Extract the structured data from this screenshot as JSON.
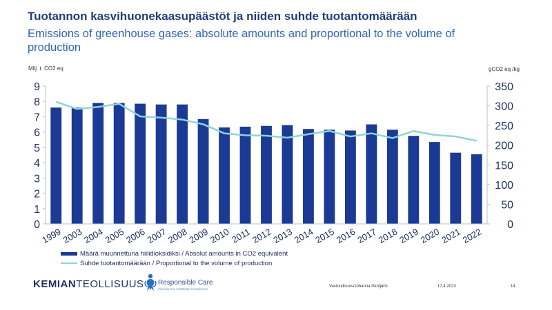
{
  "header": {
    "title": "Tuotannon kasvihuonekaasupäästöt ja niiden suhde tuotantomäärään",
    "subtitle": "Emissions of greenhouse gases: absolute amounts and proportional to the volume of production"
  },
  "chart_data": {
    "type": "bar",
    "categories": [
      "1999",
      "2003",
      "2004",
      "2005",
      "2006",
      "2007",
      "2008",
      "2009",
      "2010",
      "2011",
      "2012",
      "2013",
      "2014",
      "2015",
      "2016",
      "2017",
      "2018",
      "2019",
      "2020",
      "2021",
      "2022"
    ],
    "series": [
      {
        "name": "Määrä muunnettuna hiilidioksidiksi / Absolut amounts in CO2 equivalent",
        "type": "bar",
        "axis": "left",
        "color": "#1a3a95",
        "values": [
          7.6,
          7.6,
          7.9,
          7.9,
          7.85,
          7.8,
          7.8,
          6.85,
          6.3,
          6.35,
          6.4,
          6.45,
          6.2,
          6.15,
          6.1,
          6.5,
          6.15,
          5.75,
          5.35,
          4.65,
          4.55
        ]
      },
      {
        "name": "Suhde tuotantomäärään / Proportional to the volume of production",
        "type": "line",
        "axis": "right",
        "color": "#8fd4d6",
        "values": [
          310,
          292,
          297,
          305,
          273,
          270,
          265,
          253,
          230,
          225,
          224,
          219,
          228,
          236,
          222,
          230,
          218,
          236,
          226,
          222,
          211
        ]
      }
    ],
    "y_left": {
      "label": "Milj. t. CO2 eq",
      "range": [
        0,
        9
      ],
      "ticks": [
        "0",
        "1",
        "2",
        "3",
        "4",
        "5",
        "6",
        "7",
        "8",
        "9"
      ]
    },
    "y_right": {
      "label": "gCO2 eq /kg",
      "range": [
        0,
        350
      ],
      "ticks": [
        "0",
        "50",
        "100",
        "150",
        "200",
        "250",
        "300",
        "350"
      ]
    },
    "grid": false,
    "legend_position": "bottom-left"
  },
  "footer": {
    "logo_bold": "KEMIAN",
    "logo_rest": "TEOLLISUUS",
    "responsible_care": "Responsible Care",
    "responsible_care_sub": "Sitoudumme kestävään kehitykseen",
    "author": "Vastuullisuus/Johanna Pentjärvi",
    "date": "17.4.2023",
    "page": "14"
  }
}
